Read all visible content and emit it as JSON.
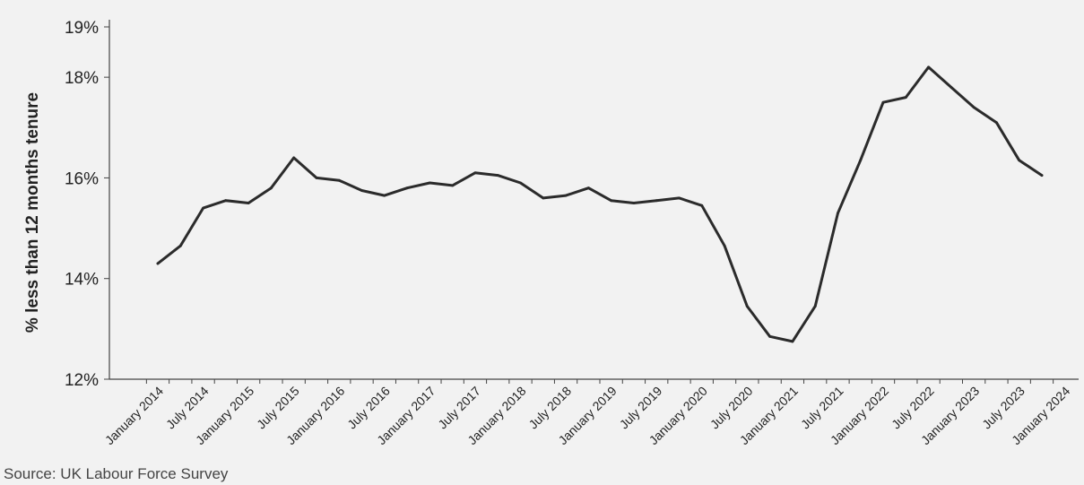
{
  "chart_data": {
    "type": "line",
    "ylabel": "% less than 12 months tenure",
    "ylim": [
      12,
      19
    ],
    "y_ticks": [
      {
        "value": 12,
        "label": "12%"
      },
      {
        "value": 14,
        "label": "14%"
      },
      {
        "value": 16,
        "label": "16%"
      },
      {
        "value": 18,
        "label": "18%"
      },
      {
        "value": 19,
        "label": "19%"
      }
    ],
    "x_tick_labels": [
      "January 2014",
      "July 2014",
      "January 2015",
      "July 2015",
      "January 2016",
      "July 2016",
      "January 2017",
      "July 2017",
      "January 2018",
      "July 2018",
      "January 2019",
      "July 2019",
      "January 2020",
      "July 2020",
      "January 2021",
      "July 2021",
      "January 2022",
      "July 2022",
      "January 2023",
      "July 2023",
      "January 2024"
    ],
    "grid": false,
    "legend": "none",
    "line_color": "#2b2b2b",
    "series": [
      {
        "values": [
          14.3,
          14.65,
          15.4,
          15.55,
          15.5,
          15.8,
          16.4,
          16.0,
          15.95,
          15.75,
          15.65,
          15.8,
          15.9,
          15.85,
          16.1,
          16.05,
          15.9,
          15.6,
          15.65,
          15.8,
          15.55,
          15.5,
          15.55,
          15.6,
          15.45,
          14.65,
          13.45,
          12.85,
          12.75,
          13.45,
          15.3,
          16.35,
          17.5,
          17.6,
          18.2,
          17.8,
          17.4,
          17.1,
          16.35,
          16.05
        ]
      }
    ]
  },
  "source_text": "Source:  UK Labour Force Survey"
}
